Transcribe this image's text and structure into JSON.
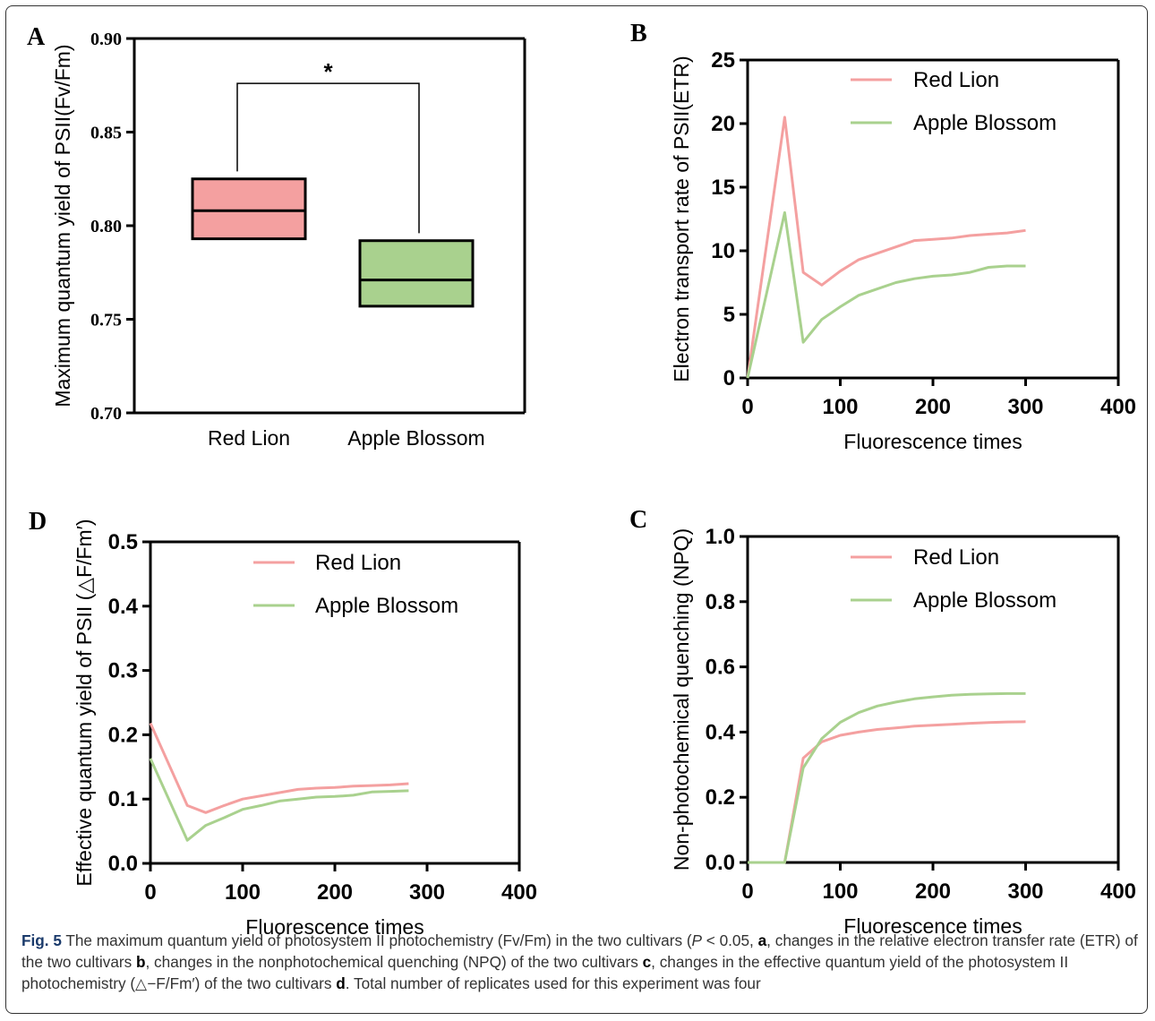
{
  "colors": {
    "red_lion": "#f4a0a0",
    "apple_blossom": "#a9d18e",
    "axis": "#000000"
  },
  "chart_data": [
    {
      "id": "A",
      "type": "box",
      "panel_label": "A",
      "ylabel": "Maximum quantum yield of PSII(Fv/Fm)",
      "ylim": [
        0.7,
        0.9
      ],
      "yticks": [
        "0.70",
        "0.75",
        "0.80",
        "0.85",
        "0.90"
      ],
      "categories": [
        "Red Lion",
        "Apple Blossom"
      ],
      "boxes": [
        {
          "name": "Red Lion",
          "low": 0.793,
          "median": 0.808,
          "high": 0.825,
          "whisker": 0.829,
          "color": "#f4a0a0"
        },
        {
          "name": "Apple Blossom",
          "low": 0.757,
          "median": 0.771,
          "high": 0.792,
          "whisker": 0.796,
          "color": "#a9d18e"
        }
      ],
      "significance": {
        "label": "*",
        "level": 0.876
      }
    },
    {
      "id": "B",
      "type": "line",
      "panel_label": "B",
      "ylabel": "Electron transport rate of PSII(ETR)",
      "xlabel": "Fluorescence times",
      "xlim": [
        0,
        400
      ],
      "ylim": [
        0,
        25
      ],
      "xticks": [
        "0",
        "100",
        "200",
        "300",
        "400"
      ],
      "yticks": [
        "0",
        "5",
        "10",
        "15",
        "20",
        "25"
      ],
      "legend": "top-right",
      "series": [
        {
          "name": "Red Lion",
          "color": "#f4a0a0",
          "x": [
            0,
            40,
            60,
            80,
            100,
            120,
            140,
            160,
            180,
            200,
            220,
            240,
            260,
            280,
            300
          ],
          "y": [
            0,
            20.5,
            8.3,
            7.3,
            8.4,
            9.3,
            9.8,
            10.3,
            10.8,
            10.9,
            11.0,
            11.2,
            11.3,
            11.4,
            11.6
          ]
        },
        {
          "name": "Apple Blossom",
          "color": "#a9d18e",
          "x": [
            0,
            40,
            60,
            80,
            100,
            120,
            140,
            160,
            180,
            200,
            220,
            240,
            260,
            280,
            300
          ],
          "y": [
            0,
            13.0,
            2.8,
            4.6,
            5.6,
            6.5,
            7.0,
            7.5,
            7.8,
            8.0,
            8.1,
            8.3,
            8.7,
            8.8,
            8.8
          ]
        }
      ]
    },
    {
      "id": "D",
      "type": "line",
      "panel_label": "D",
      "ylabel": "Effective quantum yield of PSII (△F/Fm′)",
      "xlabel": "Fluorescence times",
      "xlim": [
        0,
        400
      ],
      "ylim": [
        0,
        0.5
      ],
      "xticks": [
        "0",
        "100",
        "200",
        "300",
        "400"
      ],
      "yticks": [
        "0.0",
        "0.1",
        "0.2",
        "0.3",
        "0.4",
        "0.5"
      ],
      "legend": "top-right",
      "series": [
        {
          "name": "Red Lion",
          "color": "#f4a0a0",
          "x": [
            0,
            40,
            60,
            80,
            100,
            120,
            140,
            160,
            180,
            200,
            220,
            240,
            260,
            280
          ],
          "y": [
            0.218,
            0.09,
            0.079,
            0.09,
            0.1,
            0.105,
            0.11,
            0.115,
            0.117,
            0.118,
            0.12,
            0.121,
            0.122,
            0.124
          ]
        },
        {
          "name": "Apple Blossom",
          "color": "#a9d18e",
          "x": [
            0,
            40,
            60,
            80,
            100,
            120,
            140,
            160,
            180,
            200,
            220,
            240,
            260,
            280
          ],
          "y": [
            0.163,
            0.036,
            0.059,
            0.071,
            0.084,
            0.09,
            0.097,
            0.1,
            0.103,
            0.104,
            0.106,
            0.111,
            0.112,
            0.113
          ]
        }
      ]
    },
    {
      "id": "C",
      "type": "line",
      "panel_label": "C",
      "ylabel": "Non-photochemical quenching (NPQ)",
      "xlabel": "Fluorescence times",
      "xlim": [
        0,
        400
      ],
      "ylim": [
        0,
        1.0
      ],
      "xticks": [
        "0",
        "100",
        "200",
        "300",
        "400"
      ],
      "yticks": [
        "0.0",
        "0.2",
        "0.4",
        "0.6",
        "0.8",
        "1.0"
      ],
      "legend": "top-right",
      "series": [
        {
          "name": "Red Lion",
          "color": "#f4a0a0",
          "x": [
            0,
            40,
            60,
            80,
            100,
            120,
            140,
            160,
            180,
            200,
            220,
            240,
            260,
            280,
            300
          ],
          "y": [
            0,
            0,
            0.32,
            0.37,
            0.39,
            0.4,
            0.408,
            0.413,
            0.418,
            0.421,
            0.424,
            0.427,
            0.429,
            0.431,
            0.432
          ]
        },
        {
          "name": "Apple Blossom",
          "color": "#a9d18e",
          "x": [
            0,
            40,
            60,
            80,
            100,
            120,
            140,
            160,
            180,
            200,
            220,
            240,
            260,
            280,
            300
          ],
          "y": [
            0,
            0,
            0.29,
            0.38,
            0.43,
            0.46,
            0.48,
            0.492,
            0.502,
            0.508,
            0.513,
            0.516,
            0.517,
            0.518,
            0.518
          ]
        }
      ]
    }
  ],
  "caption": {
    "fig_label": "Fig. 5",
    "part1": " The maximum quantum yield of photosystem II photochemistry (Fv/Fm) in the two cultivars (",
    "p_symbol": "P",
    "part2": " < 0.05, ",
    "ref_a": "a",
    "part3": ", changes in the relative electron transfer rate (ETR) of the two cultivars ",
    "ref_b": "b",
    "part4": ", changes in the nonphotochemical quenching (NPQ) of the two cultivars ",
    "ref_c": "c",
    "part5": ", changes in the effective quantum yield of the photosystem II photochemistry (△−F/Fm′) of the two cultivars ",
    "ref_d": "d",
    "part6": ". Total number of replicates used for this experiment was four"
  }
}
